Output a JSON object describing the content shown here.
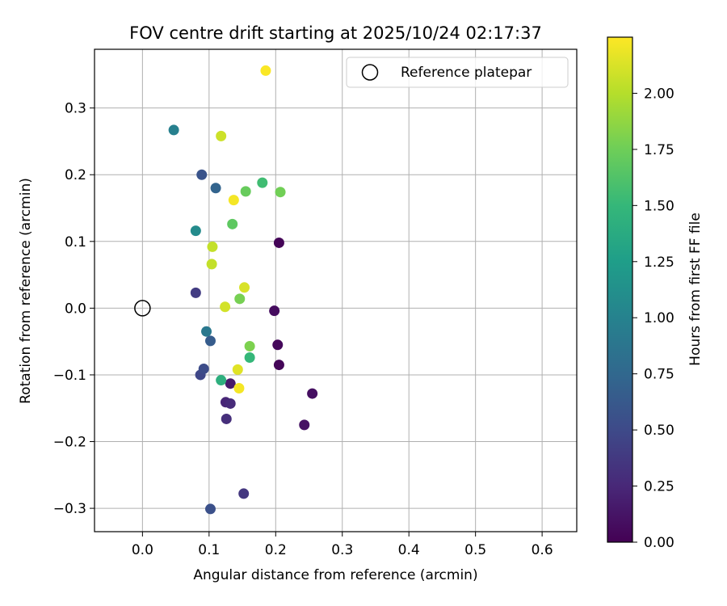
{
  "chart_data": {
    "type": "scatter",
    "title": "FOV centre drift starting at 2025/10/24 02:17:37",
    "xlabel": "Angular distance from reference (arcmin)",
    "ylabel": "Rotation from reference (arcmin)",
    "xlim": [
      -0.072,
      0.652
    ],
    "ylim": [
      -0.335,
      0.388
    ],
    "xticks": [
      0.0,
      0.1,
      0.2,
      0.3,
      0.4,
      0.5,
      0.6
    ],
    "xtick_labels": [
      "0.0",
      "0.1",
      "0.2",
      "0.3",
      "0.4",
      "0.5",
      "0.6"
    ],
    "yticks": [
      -0.3,
      -0.2,
      -0.1,
      0.0,
      0.1,
      0.2,
      0.3
    ],
    "ytick_labels": [
      "−0.3",
      "−0.2",
      "−0.1",
      "0.0",
      "0.1",
      "0.2",
      "0.3"
    ],
    "grid": true,
    "legend": {
      "placement": "top-right",
      "entries": [
        "Reference platepar"
      ]
    },
    "reference_point": {
      "x": 0.0,
      "y": 0.0
    },
    "colorbar": {
      "label": "Hours from first FF file",
      "colormap": "viridis",
      "range": [
        0.0,
        2.25
      ],
      "ticks": [
        0.0,
        0.25,
        0.5,
        0.75,
        1.0,
        1.25,
        1.5,
        1.75,
        2.0
      ],
      "tick_labels": [
        "0.00",
        "0.25",
        "0.50",
        "0.75",
        "1.00",
        "1.25",
        "1.50",
        "1.75",
        "2.00"
      ]
    },
    "points": [
      {
        "x": 0.205,
        "y": 0.098,
        "hours": 0.02
      },
      {
        "x": 0.205,
        "y": -0.085,
        "hours": 0.03
      },
      {
        "x": 0.203,
        "y": -0.055,
        "hours": 0.05
      },
      {
        "x": 0.198,
        "y": -0.004,
        "hours": 0.07
      },
      {
        "x": 0.255,
        "y": -0.128,
        "hours": 0.09
      },
      {
        "x": 0.243,
        "y": -0.175,
        "hours": 0.11
      },
      {
        "x": 0.132,
        "y": -0.113,
        "hours": 0.16
      },
      {
        "x": 0.125,
        "y": -0.141,
        "hours": 0.24
      },
      {
        "x": 0.132,
        "y": -0.143,
        "hours": 0.27
      },
      {
        "x": 0.126,
        "y": -0.166,
        "hours": 0.3
      },
      {
        "x": 0.152,
        "y": -0.278,
        "hours": 0.36
      },
      {
        "x": 0.08,
        "y": 0.023,
        "hours": 0.4
      },
      {
        "x": 0.087,
        "y": -0.1,
        "hours": 0.48
      },
      {
        "x": 0.092,
        "y": -0.091,
        "hours": 0.52
      },
      {
        "x": 0.102,
        "y": -0.301,
        "hours": 0.55
      },
      {
        "x": 0.089,
        "y": 0.2,
        "hours": 0.58
      },
      {
        "x": 0.102,
        "y": -0.049,
        "hours": 0.65
      },
      {
        "x": 0.11,
        "y": 0.18,
        "hours": 0.72
      },
      {
        "x": 0.096,
        "y": -0.035,
        "hours": 0.9
      },
      {
        "x": 0.047,
        "y": 0.267,
        "hours": 0.98
      },
      {
        "x": 0.08,
        "y": 0.116,
        "hours": 1.08
      },
      {
        "x": 0.118,
        "y": -0.108,
        "hours": 1.42
      },
      {
        "x": 0.161,
        "y": -0.074,
        "hours": 1.5
      },
      {
        "x": 0.18,
        "y": 0.188,
        "hours": 1.55
      },
      {
        "x": 0.135,
        "y": 0.126,
        "hours": 1.68
      },
      {
        "x": 0.155,
        "y": 0.175,
        "hours": 1.72
      },
      {
        "x": 0.207,
        "y": 0.174,
        "hours": 1.76
      },
      {
        "x": 0.146,
        "y": 0.014,
        "hours": 1.78
      },
      {
        "x": 0.161,
        "y": -0.057,
        "hours": 1.8
      },
      {
        "x": 0.105,
        "y": 0.092,
        "hours": 2.05
      },
      {
        "x": 0.104,
        "y": 0.066,
        "hours": 2.05
      },
      {
        "x": 0.118,
        "y": 0.258,
        "hours": 2.08
      },
      {
        "x": 0.124,
        "y": 0.002,
        "hours": 2.1
      },
      {
        "x": 0.153,
        "y": 0.031,
        "hours": 2.12
      },
      {
        "x": 0.143,
        "y": -0.092,
        "hours": 2.15
      },
      {
        "x": 0.137,
        "y": 0.162,
        "hours": 2.22
      },
      {
        "x": 0.145,
        "y": -0.12,
        "hours": 2.22
      },
      {
        "x": 0.185,
        "y": 0.356,
        "hours": 2.24
      }
    ]
  },
  "colors": {
    "axis": "#000000",
    "grid": "#b0b0b0",
    "legend_border": "#cccccc",
    "viridis_stops": [
      "#440154",
      "#482878",
      "#3e4a89",
      "#31688e",
      "#26828e",
      "#1f9e89",
      "#35b779",
      "#6ece58",
      "#b5de2b",
      "#fde725"
    ]
  }
}
